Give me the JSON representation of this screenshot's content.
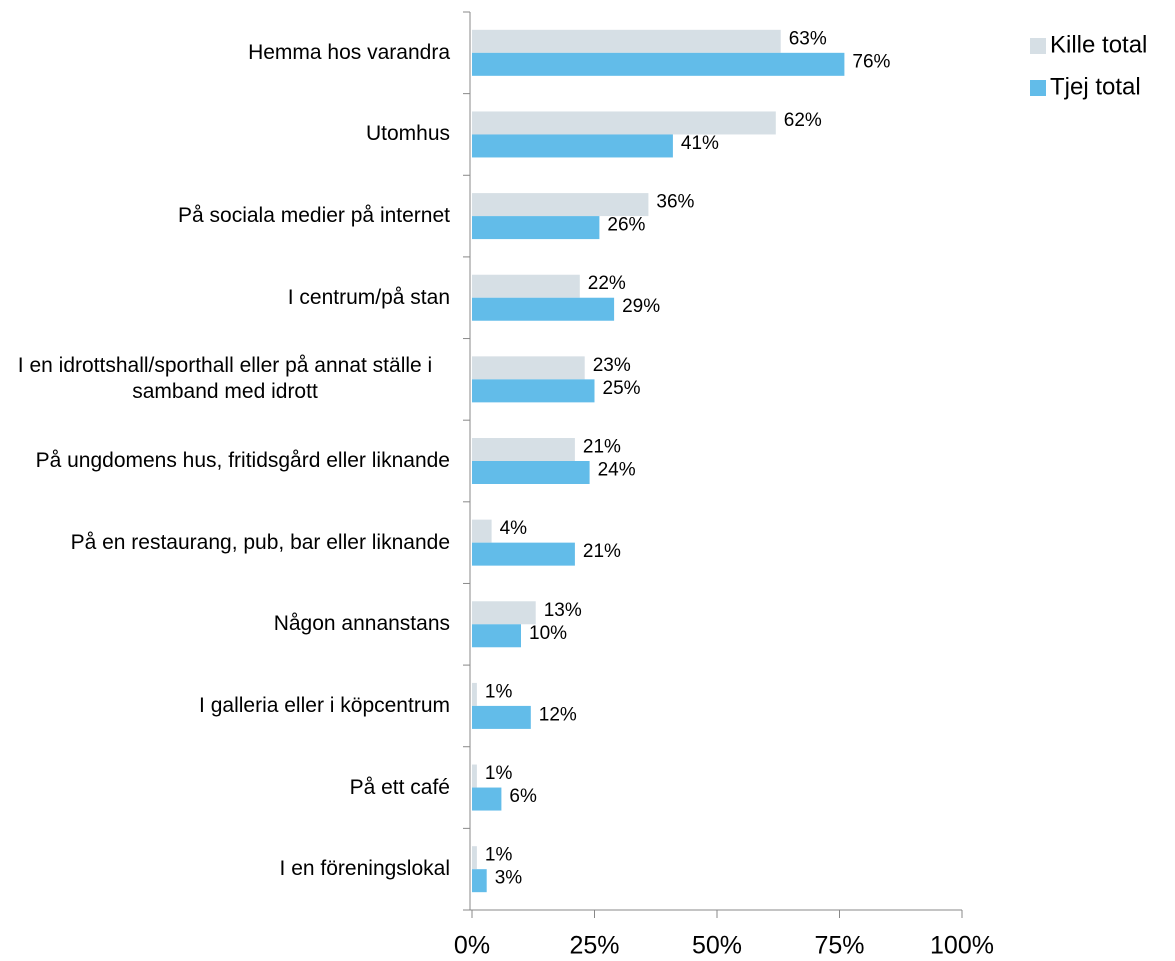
{
  "chart_data": {
    "type": "bar",
    "orientation": "horizontal",
    "categories": [
      "Hemma hos varandra",
      "Utomhus",
      "På sociala medier på internet",
      "I centrum/på stan",
      "I en idrottshall/sporthall eller på annat ställe i samband med idrott",
      "På ungdomens hus, fritidsgård eller liknande",
      "På en restaurang, pub, bar eller liknande",
      "Någon annanstans",
      "I galleria eller i köpcentrum",
      "På ett café",
      "I en föreningslokal"
    ],
    "series": [
      {
        "name": "Kille total",
        "color": "#d6dfe5",
        "values": [
          63,
          62,
          36,
          22,
          23,
          21,
          4,
          13,
          1,
          1,
          1
        ],
        "value_labels": [
          "63%",
          "62%",
          "36%",
          "22%",
          "23%",
          "21%",
          "4%",
          "13%",
          "1%",
          "1%",
          "1%"
        ]
      },
      {
        "name": "Tjej total",
        "color": "#62bce9",
        "values": [
          76,
          41,
          26,
          29,
          25,
          24,
          21,
          10,
          12,
          6,
          3
        ],
        "value_labels": [
          "76%",
          "41%",
          "26%",
          "29%",
          "25%",
          "24%",
          "21%",
          "10%",
          "12%",
          "6%",
          "3%"
        ]
      }
    ],
    "xlim": [
      0,
      100
    ],
    "xticks": [
      {
        "value": 0,
        "label": "0%"
      },
      {
        "value": 25,
        "label": "25%"
      },
      {
        "value": 50,
        "label": "50%"
      },
      {
        "value": 75,
        "label": "75%"
      },
      {
        "value": 100,
        "label": "100%"
      }
    ],
    "legend": "top-right"
  }
}
